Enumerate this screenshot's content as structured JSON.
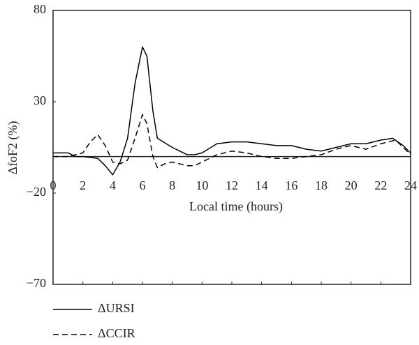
{
  "chart_data": {
    "type": "line",
    "y_label": "ΔfoF2 (%)",
    "x_label": "Local time (hours)",
    "xlim": [
      0,
      24
    ],
    "xticks": [
      0,
      2,
      4,
      6,
      8,
      10,
      12,
      14,
      16,
      18,
      20,
      22,
      24
    ],
    "ylim": [
      -70,
      80
    ],
    "yticks": [
      {
        "value": -70,
        "label": "−70"
      },
      {
        "value": -20,
        "label": "−20"
      },
      30,
      80
    ],
    "zero_line": 0,
    "series": [
      {
        "name": "ΔURSI",
        "color": "#000000",
        "line_style": "solid",
        "x": [
          0,
          1,
          1.5,
          2,
          3,
          3.5,
          4,
          4.5,
          5,
          5.5,
          6,
          6.3,
          6.7,
          7,
          8,
          9,
          9.5,
          10,
          11,
          12,
          13,
          14,
          15,
          16,
          17,
          18,
          19,
          20,
          21,
          22,
          22.8,
          23.5,
          24
        ],
        "values": [
          2,
          2,
          0,
          0,
          -1,
          -5,
          -10,
          -3,
          10,
          40,
          60,
          55,
          25,
          10,
          5,
          1,
          1,
          2,
          7,
          8,
          8,
          7,
          6,
          6,
          4,
          3,
          5,
          7,
          7,
          9,
          10,
          6,
          2
        ]
      },
      {
        "name": "ΔCCIR",
        "color": "#000000",
        "line_style": "dashed",
        "x": [
          0,
          1,
          2,
          2.5,
          3,
          3.5,
          4,
          4.5,
          5,
          5.5,
          6,
          6.3,
          6.7,
          7,
          7.5,
          8,
          9,
          9.5,
          10,
          11,
          12,
          13,
          14,
          15,
          16,
          17,
          18,
          19,
          20,
          21,
          22,
          23,
          24
        ],
        "values": [
          0,
          0,
          2,
          8,
          12,
          6,
          -3,
          -4,
          -2,
          10,
          23,
          18,
          0,
          -6,
          -4,
          -3,
          -5,
          -5,
          -3,
          1,
          3,
          2,
          0,
          -1,
          -1,
          0,
          1,
          4,
          6,
          4,
          7,
          9,
          1
        ]
      }
    ]
  }
}
